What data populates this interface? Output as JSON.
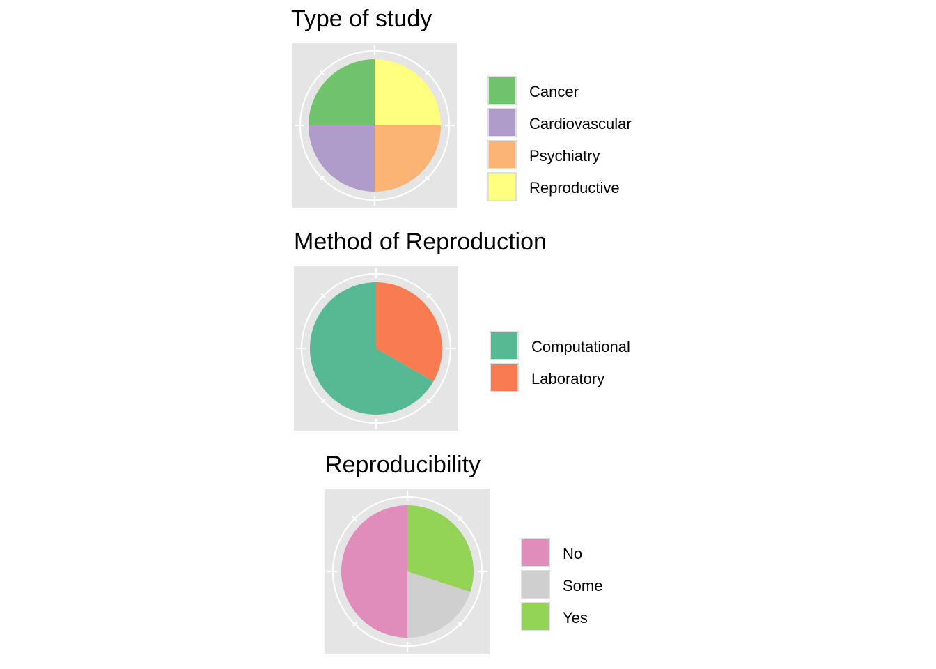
{
  "chart_data": [
    {
      "type": "pie",
      "title": "Type of study",
      "categories": [
        "Cancer",
        "Cardiovascular",
        "Psychiatry",
        "Reproductive"
      ],
      "values": [
        1,
        1,
        1,
        1
      ],
      "colors": [
        "#70c26c",
        "#b09ccb",
        "#fbb474",
        "#ffff80"
      ],
      "legend_position": "right"
    },
    {
      "type": "pie",
      "title": "Method of Reproduction",
      "categories": [
        "Computational",
        "Laboratory"
      ],
      "values": [
        2,
        1
      ],
      "colors": [
        "#57b993",
        "#f97b51"
      ],
      "legend_position": "right"
    },
    {
      "type": "pie",
      "title": "Reproducibility",
      "categories": [
        "No",
        "Some",
        "Yes"
      ],
      "values": [
        5,
        2,
        3
      ],
      "colors": [
        "#e08dbb",
        "#cfcfcf",
        "#93d355"
      ],
      "legend_position": "right"
    }
  ]
}
